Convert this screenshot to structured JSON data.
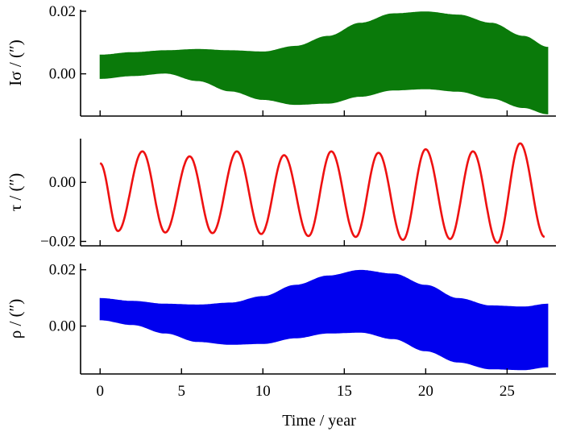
{
  "chart_data": [
    {
      "type": "area",
      "ylabel": "Iσ / (″)",
      "color": "#0a7a0a",
      "xlim": [
        -1.2,
        28.0
      ],
      "ylim": [
        -0.0135,
        0.0205
      ],
      "yticks": [
        0.0,
        0.02
      ],
      "ytick_labels": [
        "0.00",
        "0.02"
      ],
      "x": [
        0,
        2,
        4,
        6,
        8,
        10,
        12,
        14,
        16,
        18,
        20,
        22,
        24,
        26,
        27.5
      ],
      "upper": [
        0.006,
        0.0068,
        0.0074,
        0.0078,
        0.0074,
        0.007,
        0.0088,
        0.012,
        0.0162,
        0.0192,
        0.0198,
        0.0188,
        0.0162,
        0.012,
        0.0085
      ],
      "lower": [
        -0.0015,
        -0.0006,
        0.0002,
        -0.0022,
        -0.0055,
        -0.0082,
        -0.0098,
        -0.0094,
        -0.0072,
        -0.0052,
        -0.0048,
        -0.0056,
        -0.0078,
        -0.0108,
        -0.0128
      ]
    },
    {
      "type": "line",
      "ylabel": "τ / (″)",
      "color": "#ee1111",
      "xlim": [
        -1.2,
        28.0
      ],
      "ylim": [
        -0.0215,
        0.0148
      ],
      "yticks": [
        -0.02,
        0.0
      ],
      "ytick_labels": [
        "−0.02",
        "0.00"
      ],
      "x": [
        0,
        1.1,
        2.6,
        4.0,
        5.5,
        6.9,
        8.4,
        9.9,
        11.3,
        12.8,
        14.2,
        15.7,
        17.1,
        18.6,
        20.0,
        21.5,
        22.9,
        24.4,
        25.8,
        27.3
      ],
      "y": [
        0.0065,
        -0.0165,
        0.0105,
        -0.017,
        0.0088,
        -0.0172,
        0.0105,
        -0.0175,
        0.0092,
        -0.0182,
        0.0105,
        -0.0185,
        0.01,
        -0.0195,
        0.0112,
        -0.0192,
        0.0105,
        -0.0205,
        0.0132,
        -0.0185
      ]
    },
    {
      "type": "area",
      "ylabel": "ρ / (″)",
      "color": "#0000ee",
      "xlim": [
        -1.2,
        28.0
      ],
      "ylim": [
        -0.017,
        0.0222
      ],
      "yticks": [
        0.0,
        0.02
      ],
      "ytick_labels": [
        "0.00",
        "0.02"
      ],
      "x": [
        0,
        2,
        4,
        6,
        8,
        10,
        12,
        14,
        16,
        18,
        20,
        22,
        24,
        26,
        27.5
      ],
      "upper": [
        0.0098,
        0.0088,
        0.0078,
        0.0075,
        0.0082,
        0.0105,
        0.0145,
        0.0178,
        0.0198,
        0.0185,
        0.0145,
        0.0098,
        0.0072,
        0.0068,
        0.0078
      ],
      "lower": [
        0.0022,
        0.0005,
        -0.0025,
        -0.0055,
        -0.0065,
        -0.0062,
        -0.0042,
        -0.0025,
        -0.0022,
        -0.0045,
        -0.0088,
        -0.0128,
        -0.0152,
        -0.0155,
        -0.0145
      ]
    }
  ],
  "xaxis": {
    "ticks": [
      0,
      5,
      10,
      15,
      20,
      25
    ],
    "tick_labels": [
      "0",
      "5",
      "10",
      "15",
      "20",
      "25"
    ],
    "label": "Time / year"
  }
}
